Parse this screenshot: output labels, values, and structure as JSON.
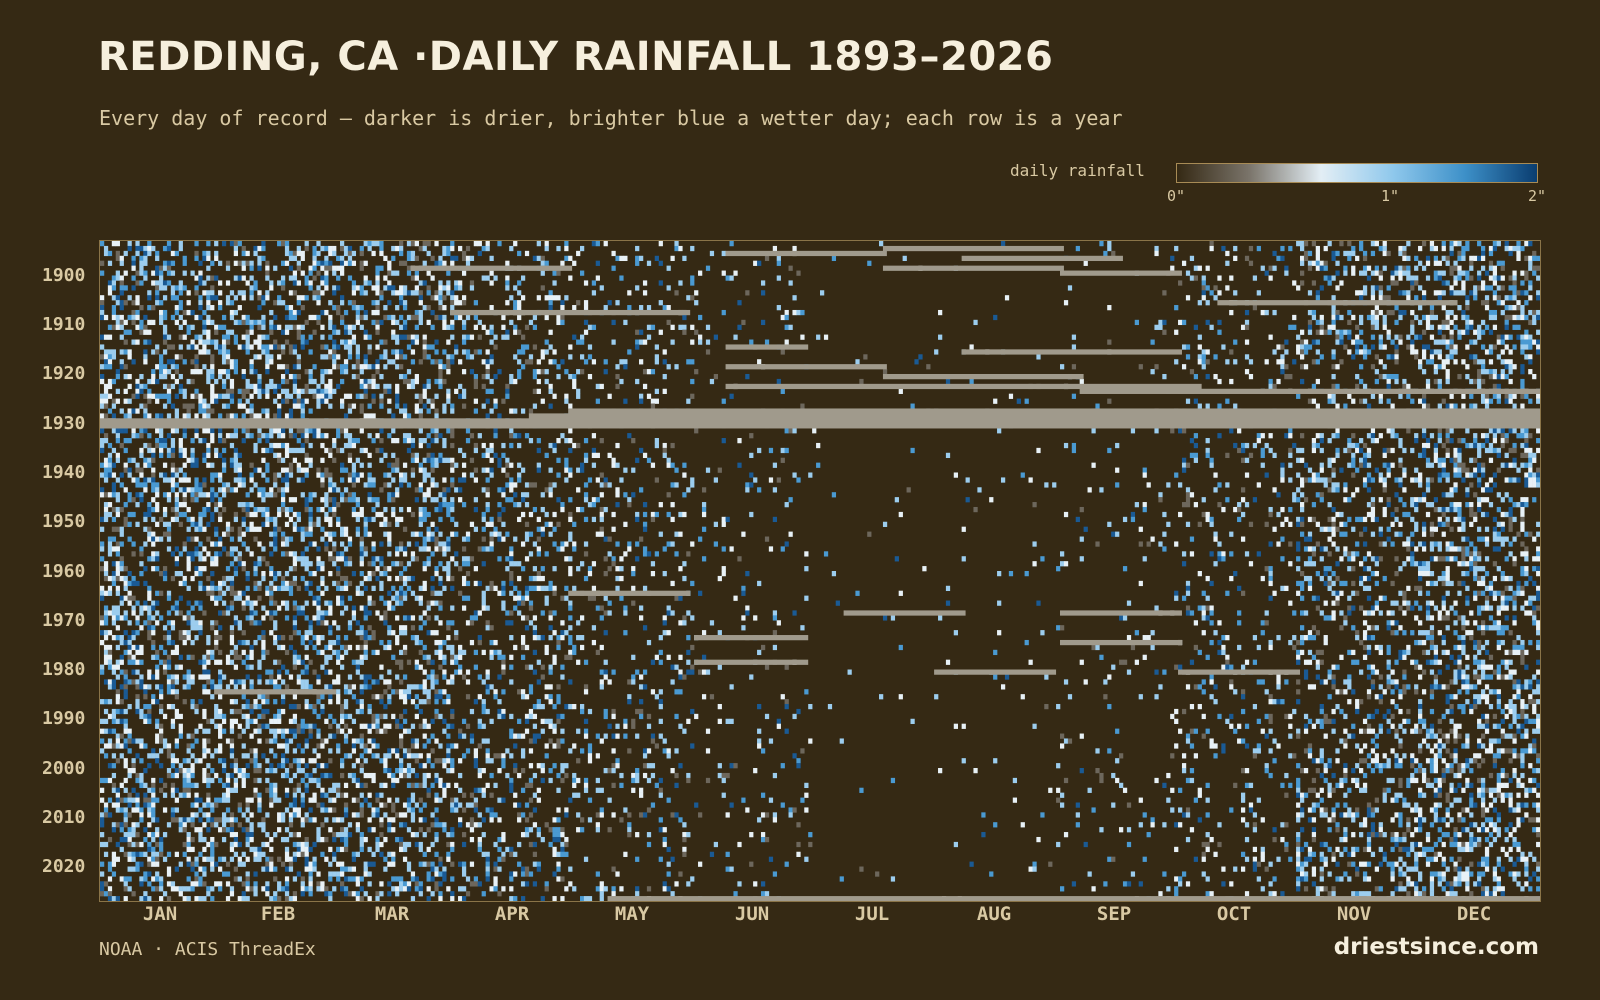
{
  "header": {
    "title": "REDDING, CA ·DAILY RAINFALL 1893–2026",
    "subtitle": "Every day of record — darker is drier, brighter blue a wetter day; each row is a year"
  },
  "legend": {
    "label": "daily rainfall",
    "ticks": [
      "0\"",
      "1\"",
      "2\""
    ],
    "range": [
      0,
      2
    ]
  },
  "footer": {
    "source": "NOAA · ACIS ThreadEx",
    "brand": "driestsince.com"
  },
  "colors": {
    "background": "#352914",
    "missing": "#a09a8c",
    "scale": [
      "#352914",
      "#7a746a",
      "#e3eef5",
      "#8fc8ec",
      "#3d90c8",
      "#0a3d70"
    ]
  },
  "chart_data": {
    "type": "heatmap",
    "title": "REDDING, CA ·DAILY RAINFALL 1893–2026",
    "x_axis": {
      "kind": "day_of_year",
      "range": [
        1,
        366
      ],
      "tick_labels": [
        "JAN",
        "FEB",
        "MAR",
        "APR",
        "MAY",
        "JUN",
        "JUL",
        "AUG",
        "SEP",
        "OCT",
        "NOV",
        "DEC"
      ]
    },
    "y_axis": {
      "kind": "year",
      "range": [
        1893,
        2026
      ],
      "tick_labels": [
        "1900",
        "1910",
        "1920",
        "1930",
        "1940",
        "1950",
        "1960",
        "1970",
        "1980",
        "1990",
        "2000",
        "2010",
        "2020"
      ]
    },
    "value_units": "inches",
    "color_range": [
      0,
      2
    ],
    "missing_data_color": "#a09a8c",
    "monthly_wet_day_fraction": [
      0.42,
      0.4,
      0.38,
      0.25,
      0.15,
      0.07,
      0.01,
      0.02,
      0.05,
      0.13,
      0.3,
      0.4
    ],
    "missing_spans": [
      {
        "year": 1894,
        "start_day": 200,
        "end_day": 245
      },
      {
        "year": 1895,
        "start_day": 160,
        "end_day": 200
      },
      {
        "year": 1896,
        "start_day": 220,
        "end_day": 260
      },
      {
        "year": 1898,
        "start_day": 200,
        "end_day": 245
      },
      {
        "year": 1898,
        "start_day": 80,
        "end_day": 120
      },
      {
        "year": 1899,
        "start_day": 245,
        "end_day": 275
      },
      {
        "year": 1905,
        "start_day": 285,
        "end_day": 345
      },
      {
        "year": 1907,
        "start_day": 90,
        "end_day": 150
      },
      {
        "year": 1914,
        "start_day": 160,
        "end_day": 180
      },
      {
        "year": 1915,
        "start_day": 220,
        "end_day": 275
      },
      {
        "year": 1918,
        "start_day": 160,
        "end_day": 200
      },
      {
        "year": 1920,
        "start_day": 200,
        "end_day": 250
      },
      {
        "year": 1922,
        "start_day": 160,
        "end_day": 280
      },
      {
        "year": 1923,
        "start_day": 250,
        "end_day": 366
      },
      {
        "year": 1927,
        "start_day": 120,
        "end_day": 366
      },
      {
        "year": 1928,
        "start_day": 110,
        "end_day": 366
      },
      {
        "year": 1929,
        "start_day": 1,
        "end_day": 366
      },
      {
        "year": 1930,
        "start_day": 1,
        "end_day": 366
      },
      {
        "year": 1964,
        "start_day": 120,
        "end_day": 150
      },
      {
        "year": 1968,
        "start_day": 190,
        "end_day": 220
      },
      {
        "year": 1968,
        "start_day": 245,
        "end_day": 275
      },
      {
        "year": 1973,
        "start_day": 152,
        "end_day": 180
      },
      {
        "year": 1974,
        "start_day": 245,
        "end_day": 275
      },
      {
        "year": 1978,
        "start_day": 152,
        "end_day": 180
      },
      {
        "year": 1980,
        "start_day": 213,
        "end_day": 243
      },
      {
        "year": 1980,
        "start_day": 275,
        "end_day": 305
      },
      {
        "year": 1984,
        "start_day": 30,
        "end_day": 60
      },
      {
        "year": 2026,
        "start_day": 130,
        "end_day": 366
      }
    ]
  }
}
